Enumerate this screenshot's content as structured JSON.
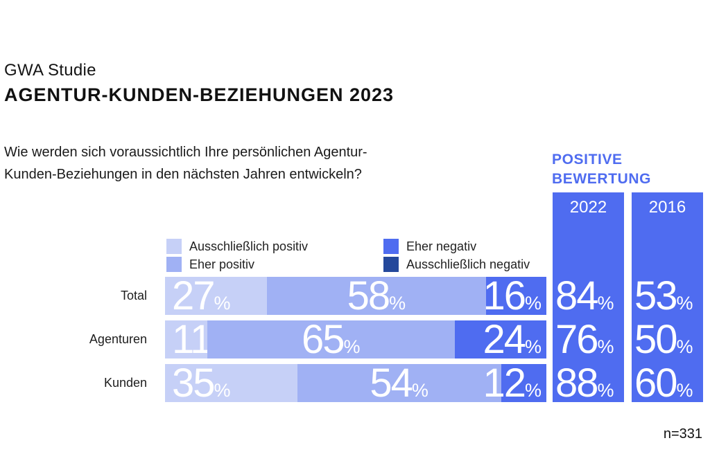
{
  "header": {
    "kicker": "GWA Studie",
    "title": "AGENTUR-KUNDEN-BEZIEHUNGEN 2023"
  },
  "question": {
    "line1": "Wie werden sich voraussichtlich Ihre persönlichen Agentur-",
    "line2": "Kunden-Beziehungen in den nächsten Jahren entwickeln?"
  },
  "positive_heading": {
    "line1": "POSITIVE",
    "line2": "BEWERTUNG"
  },
  "sample_note": "n=331",
  "colors": {
    "excl_pos": "#c6d0f7",
    "eher_pos": "#a0b1f4",
    "eher_neg": "#4f6cf0",
    "excl_neg": "#24489b",
    "accent_blue": "#4f6cf0",
    "number_text": "#ffffff"
  },
  "legend": [
    {
      "key": "excl_pos",
      "label": "Ausschließlich positiv"
    },
    {
      "key": "eher_pos",
      "label": "Eher positiv"
    },
    {
      "key": "eher_neg",
      "label": "Eher negativ"
    },
    {
      "key": "excl_neg",
      "label": "Ausschließlich negativ"
    }
  ],
  "chart_data": {
    "type": "bar",
    "stacked": true,
    "orientation": "horizontal",
    "unit": "%",
    "title": "AGENTUR-KUNDEN-BEZIEHUNGEN 2023",
    "question": "Wie werden sich voraussichtlich Ihre persönlichen Agentur-Kunden-Beziehungen in den nächsten Jahren entwickeln?",
    "categories": [
      "Total",
      "Agenturen",
      "Kunden"
    ],
    "series": [
      {
        "name": "Ausschließlich positiv",
        "key": "excl_pos",
        "values": [
          27,
          11,
          35
        ]
      },
      {
        "name": "Eher positiv",
        "key": "eher_pos",
        "values": [
          58,
          65,
          54
        ]
      },
      {
        "name": "Eher negativ",
        "key": "eher_neg",
        "values": [
          16,
          24,
          12
        ]
      }
    ],
    "legend_only_series": [
      "Ausschließlich negativ"
    ],
    "legend_position": "above-chart, two columns",
    "positive_columns": [
      {
        "year": "2022",
        "label": "POSITIVE BEWERTUNG",
        "values": [
          84,
          76,
          88
        ]
      },
      {
        "year": "2016",
        "label": "POSITIVE BEWERTUNG",
        "values": [
          53,
          50,
          60
        ]
      }
    ]
  }
}
